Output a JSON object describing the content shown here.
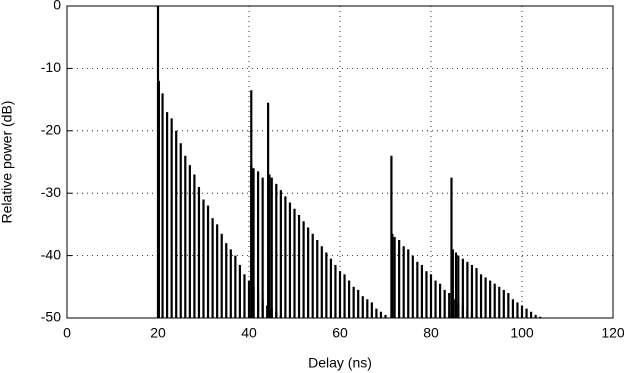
{
  "chart_data": {
    "type": "stem",
    "xlabel": "Delay (ns)",
    "ylabel": "Relative power (dB)",
    "x": [
      20,
      20.2,
      21,
      22,
      23,
      24,
      25,
      26,
      27,
      28,
      29,
      30,
      31,
      32,
      33,
      34,
      35,
      36,
      37,
      38,
      39,
      40,
      41,
      42,
      43,
      44,
      45,
      46,
      47,
      40.5,
      40.5,
      41,
      42,
      43,
      44.2,
      44.5,
      45,
      46,
      47,
      48,
      49,
      50,
      51,
      52,
      53,
      54,
      55,
      56,
      57,
      58,
      59,
      60,
      61,
      62,
      63,
      64,
      65,
      66,
      67,
      68,
      69,
      70,
      71.3,
      71.5,
      72,
      73,
      74,
      75,
      76,
      77,
      78,
      79,
      80,
      81,
      82,
      83,
      84,
      85,
      86,
      87,
      88,
      89,
      90,
      84.5,
      84.8,
      85.5,
      86,
      87,
      88,
      89,
      90,
      91,
      92,
      93,
      94,
      95,
      96,
      97,
      98,
      99,
      100,
      101,
      102,
      103,
      104
    ],
    "values": [
      0,
      -12,
      -14,
      -17,
      -18,
      -20,
      -22,
      -24,
      -25.5,
      -27,
      -29,
      -31,
      -32,
      -34,
      -35,
      -36.5,
      -38,
      -39,
      -40,
      -41.5,
      -43,
      -44,
      -45,
      -46,
      -47,
      -48,
      -48.5,
      -49,
      -49.5,
      -13.5,
      -25.5,
      -26,
      -26.5,
      -27.5,
      -15.5,
      -27,
      -27.5,
      -28.5,
      -29.5,
      -30.5,
      -31.5,
      -32.5,
      -33.5,
      -34.5,
      -35.5,
      -36.5,
      -37.5,
      -38.5,
      -39.5,
      -40.5,
      -41.5,
      -42.5,
      -43,
      -44,
      -45,
      -45.5,
      -46.5,
      -47,
      -47.5,
      -48.5,
      -49,
      -49.5,
      -24,
      -36.5,
      -37,
      -37.5,
      -38.5,
      -39,
      -40,
      -41,
      -41.5,
      -42.5,
      -43,
      -44,
      -44.5,
      -45.5,
      -46,
      -47,
      -47.5,
      -48,
      -48.5,
      -49,
      -49.5,
      -27.5,
      -39,
      -39.5,
      -40,
      -40.5,
      -41,
      -41.5,
      -42,
      -43,
      -43.5,
      -44,
      -44.5,
      -45,
      -45.5,
      -46,
      -47,
      -47.5,
      -48,
      -48.5,
      -49,
      -49.5,
      -49.8
    ],
    "color": "#000000",
    "xlim": [
      0,
      120
    ],
    "xticks": [
      0,
      20,
      40,
      60,
      80,
      100,
      120
    ],
    "ylim": [
      -50,
      0
    ],
    "yticks": [
      -50,
      -40,
      -30,
      -20,
      -10,
      0
    ],
    "grid": true
  }
}
